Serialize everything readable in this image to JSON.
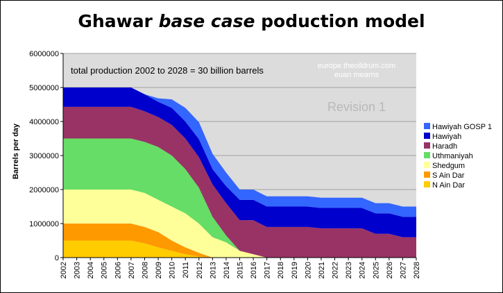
{
  "chart_data": {
    "type": "area",
    "title_parts": {
      "pre": "Ghawar ",
      "italic": "base case",
      "post": " poduction model"
    },
    "xlabel": "",
    "ylabel": "Barrels per day",
    "ylim": [
      0,
      6000000
    ],
    "yticks": [
      0,
      1000000,
      2000000,
      3000000,
      4000000,
      5000000,
      6000000
    ],
    "x": [
      2002,
      2003,
      2004,
      2005,
      2006,
      2007,
      2008,
      2009,
      2010,
      2011,
      2012,
      2013,
      2014,
      2015,
      2016,
      2017,
      2018,
      2019,
      2020,
      2021,
      2022,
      2023,
      2024,
      2025,
      2026,
      2027,
      2028
    ],
    "stacked": true,
    "grid": true,
    "legend_position": "right",
    "series": [
      {
        "name": "N Ain Dar",
        "color": "#ffcc00",
        "values": [
          500000,
          500000,
          500000,
          500000,
          500000,
          500000,
          420000,
          300000,
          200000,
          100000,
          30000,
          0,
          0,
          0,
          0,
          0,
          0,
          0,
          0,
          0,
          0,
          0,
          0,
          0,
          0,
          0,
          0
        ]
      },
      {
        "name": "S Ain Dar",
        "color": "#ff9900",
        "values": [
          500000,
          500000,
          500000,
          500000,
          500000,
          500000,
          480000,
          450000,
          300000,
          200000,
          110000,
          0,
          0,
          0,
          0,
          0,
          0,
          0,
          0,
          0,
          0,
          0,
          0,
          0,
          0,
          0,
          0
        ]
      },
      {
        "name": "Shedgum",
        "color": "#ffff99",
        "values": [
          1000000,
          1000000,
          1000000,
          1000000,
          1000000,
          1000000,
          1000000,
          950000,
          1000000,
          1000000,
          860000,
          600000,
          450000,
          200000,
          100000,
          0,
          0,
          0,
          0,
          0,
          0,
          0,
          0,
          0,
          0,
          0,
          0
        ]
      },
      {
        "name": "Uthmaniyah",
        "color": "#66dd66",
        "values": [
          1500000,
          1500000,
          1500000,
          1500000,
          1500000,
          1500000,
          1500000,
          1550000,
          1500000,
          1300000,
          1050000,
          600000,
          200000,
          0,
          0,
          0,
          0,
          0,
          0,
          0,
          0,
          0,
          0,
          0,
          0,
          0,
          0
        ]
      },
      {
        "name": "Haradh",
        "color": "#993366",
        "values": [
          930000,
          930000,
          930000,
          930000,
          930000,
          930000,
          900000,
          880000,
          900000,
          900000,
          900000,
          950000,
          950000,
          900000,
          1000000,
          900000,
          900000,
          900000,
          900000,
          860000,
          860000,
          860000,
          860000,
          700000,
          700000,
          600000,
          600000
        ]
      },
      {
        "name": "Hawiyah",
        "color": "#0000cc",
        "values": [
          570000,
          570000,
          570000,
          570000,
          570000,
          570000,
          500000,
          450000,
          500000,
          500000,
          530000,
          450000,
          500000,
          600000,
          600000,
          600000,
          600000,
          600000,
          600000,
          600000,
          600000,
          600000,
          600000,
          600000,
          600000,
          600000,
          600000
        ]
      },
      {
        "name": "Hawiyah GOSP 1",
        "color": "#3366ff",
        "values": [
          0,
          0,
          0,
          0,
          0,
          0,
          0,
          100000,
          250000,
          400000,
          500000,
          450000,
          400000,
          300000,
          300000,
          300000,
          300000,
          300000,
          300000,
          300000,
          300000,
          300000,
          300000,
          300000,
          300000,
          300000,
          300000
        ]
      }
    ],
    "legend_order": [
      "Hawiyah GOSP 1",
      "Hawiyah",
      "Haradh",
      "Uthmaniyah",
      "Shedgum",
      "S Ain Dar",
      "N Ain Dar"
    ],
    "annotations": {
      "total": "total production 2002 to 2028 = 30 billion barrels",
      "source_line1": "europe.theoildrum.com",
      "source_line2": "euan mearns",
      "revision": "Revision 1"
    }
  }
}
